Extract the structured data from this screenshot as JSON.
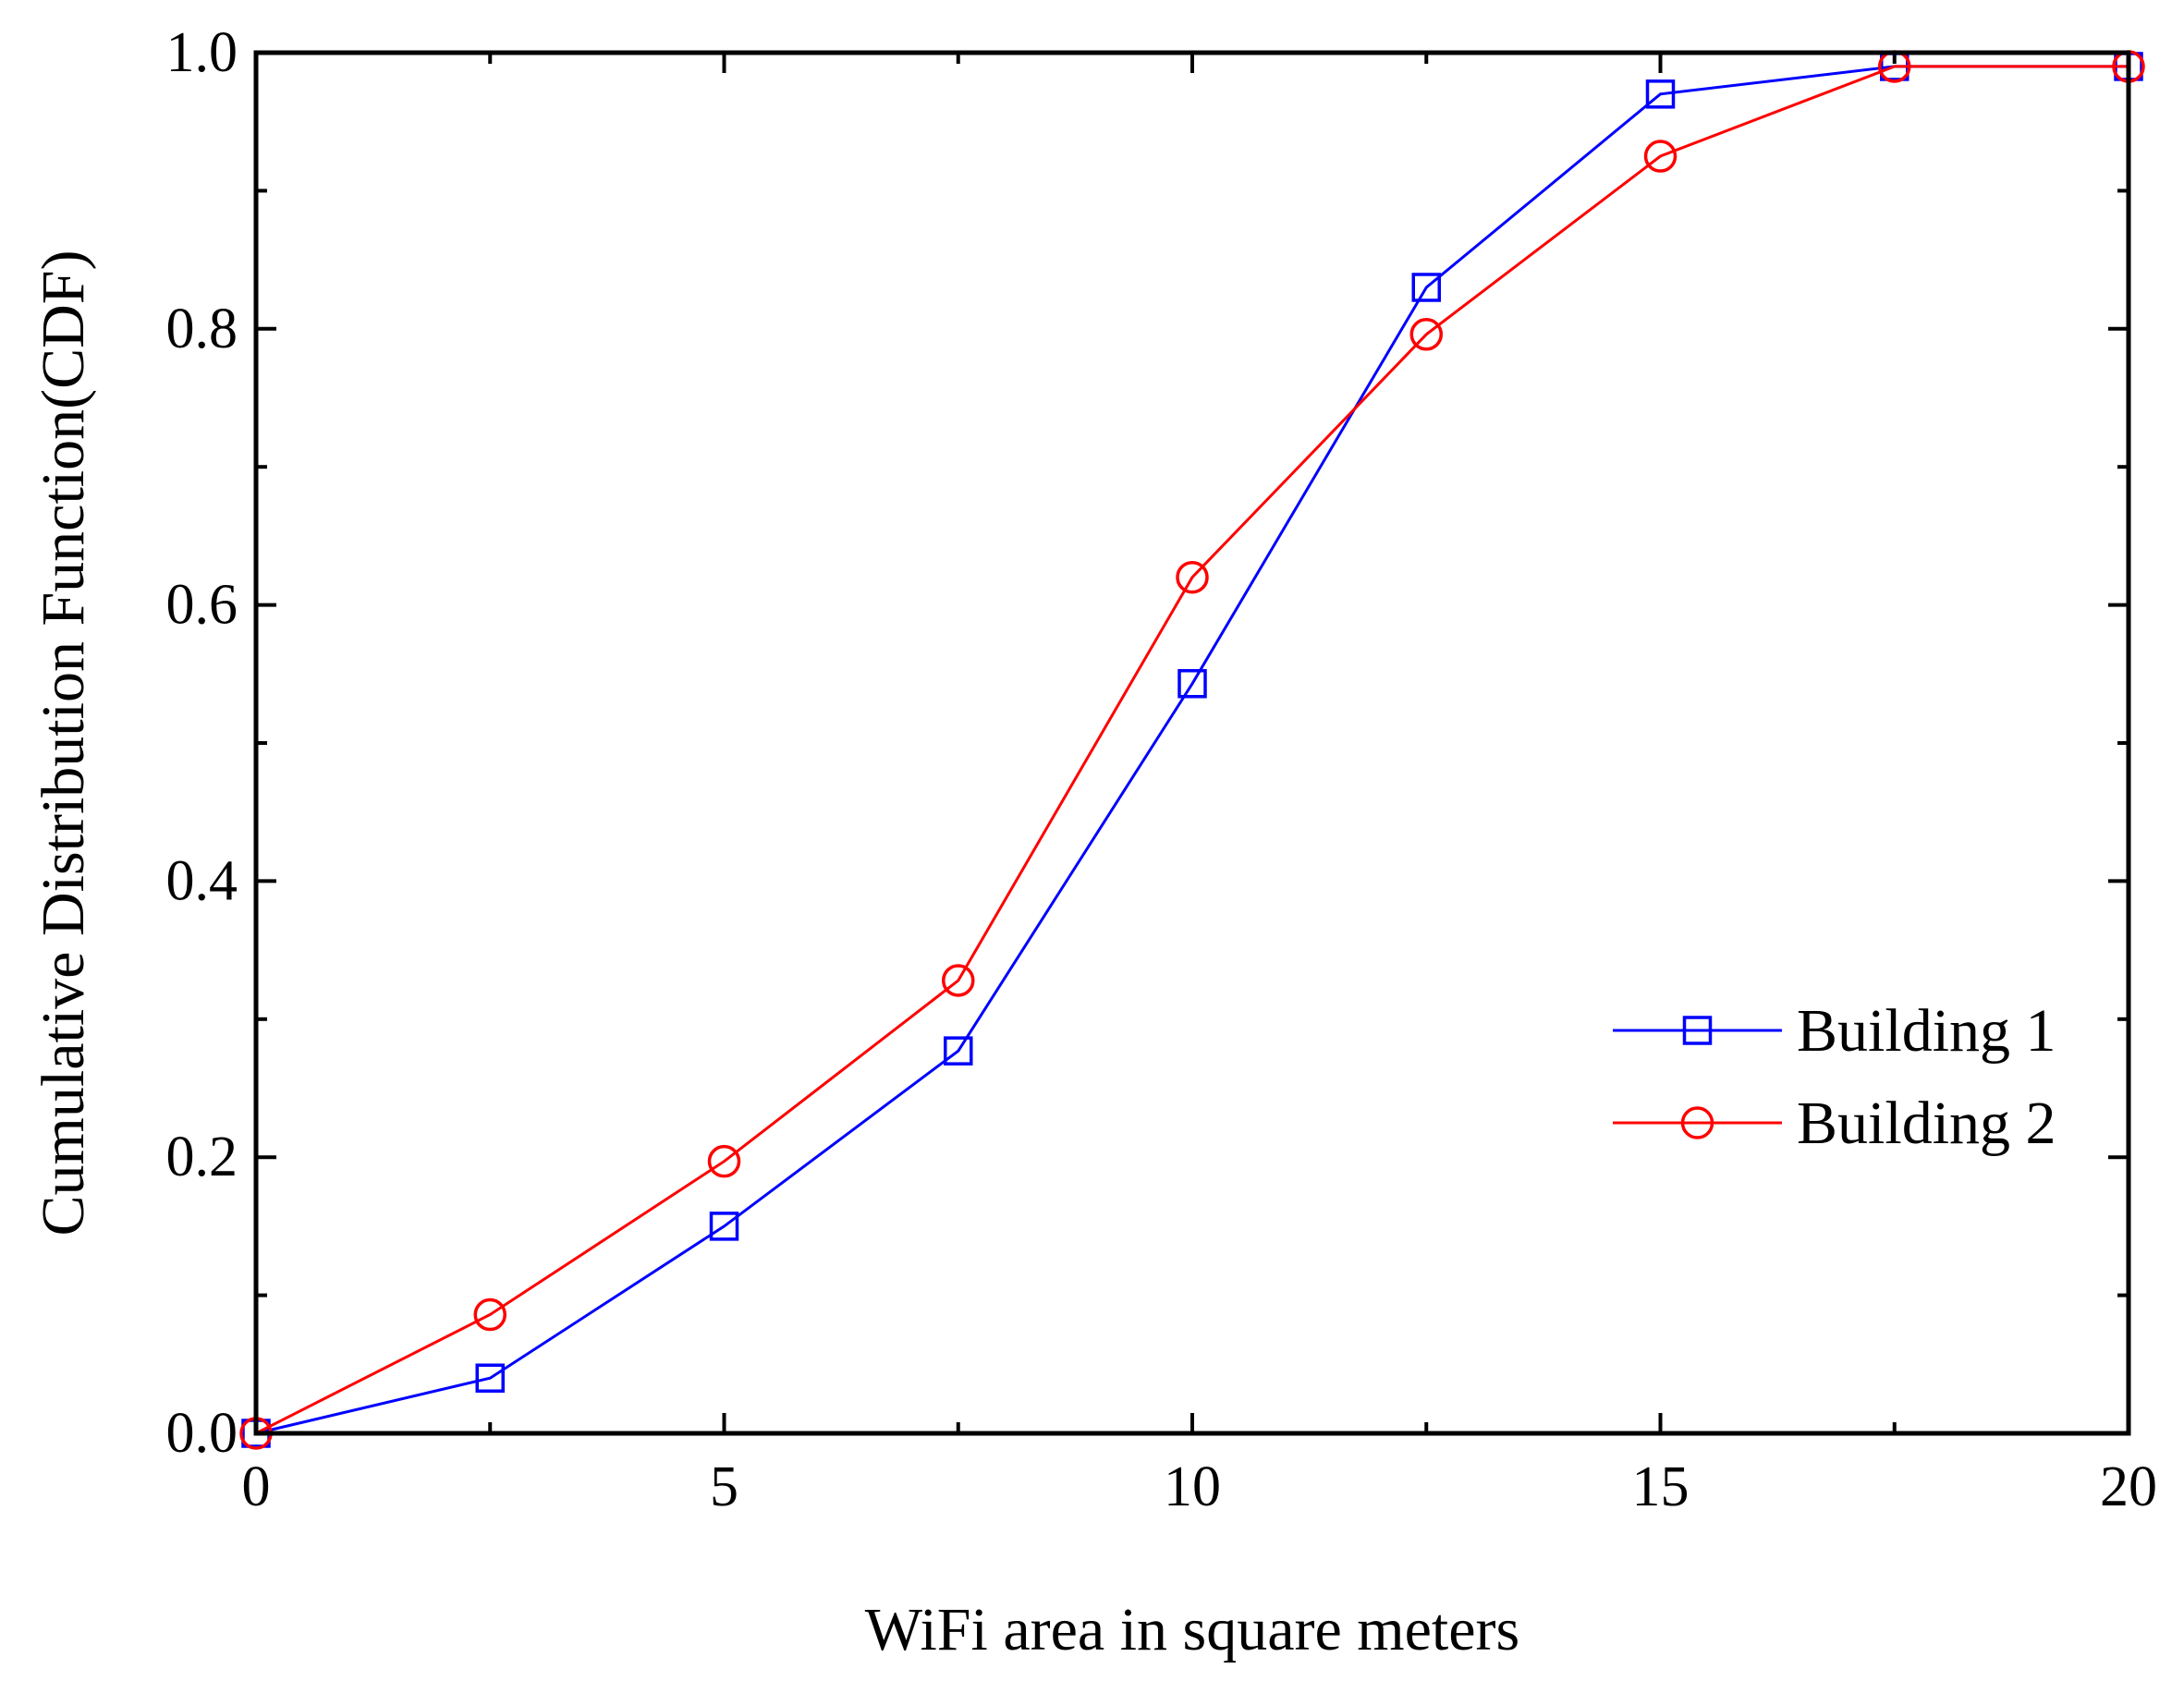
{
  "chart_data": {
    "type": "line",
    "xlabel": "WiFi area in square meters",
    "ylabel": "Cumulative Distribution Function(CDF)",
    "xlim": [
      0,
      20
    ],
    "ylim": [
      0,
      1.0
    ],
    "x_ticks": [
      0,
      5,
      10,
      15,
      20
    ],
    "x_tick_labels": [
      "0",
      "5",
      "10",
      "15",
      "20"
    ],
    "y_ticks": [
      0,
      0.2,
      0.4,
      0.6,
      0.8,
      1.0
    ],
    "y_tick_labels": [
      "0.0",
      "0.2",
      "0.4",
      "0.6",
      "0.8",
      "1.0"
    ],
    "grid": false,
    "legend_position": "right",
    "x": [
      0,
      2.5,
      5,
      7.5,
      10,
      12.5,
      15,
      17.5,
      20
    ],
    "series": [
      {
        "name": "Building 1",
        "color": "#0000ff",
        "marker": "square",
        "values": [
          0.0,
          0.04,
          0.15,
          0.277,
          0.543,
          0.83,
          0.97,
          0.99,
          0.99
        ]
      },
      {
        "name": "Building 2",
        "color": "#ff0000",
        "marker": "circle",
        "values": [
          0.0,
          0.086,
          0.197,
          0.328,
          0.62,
          0.796,
          0.925,
          0.99,
          0.99
        ]
      }
    ]
  }
}
